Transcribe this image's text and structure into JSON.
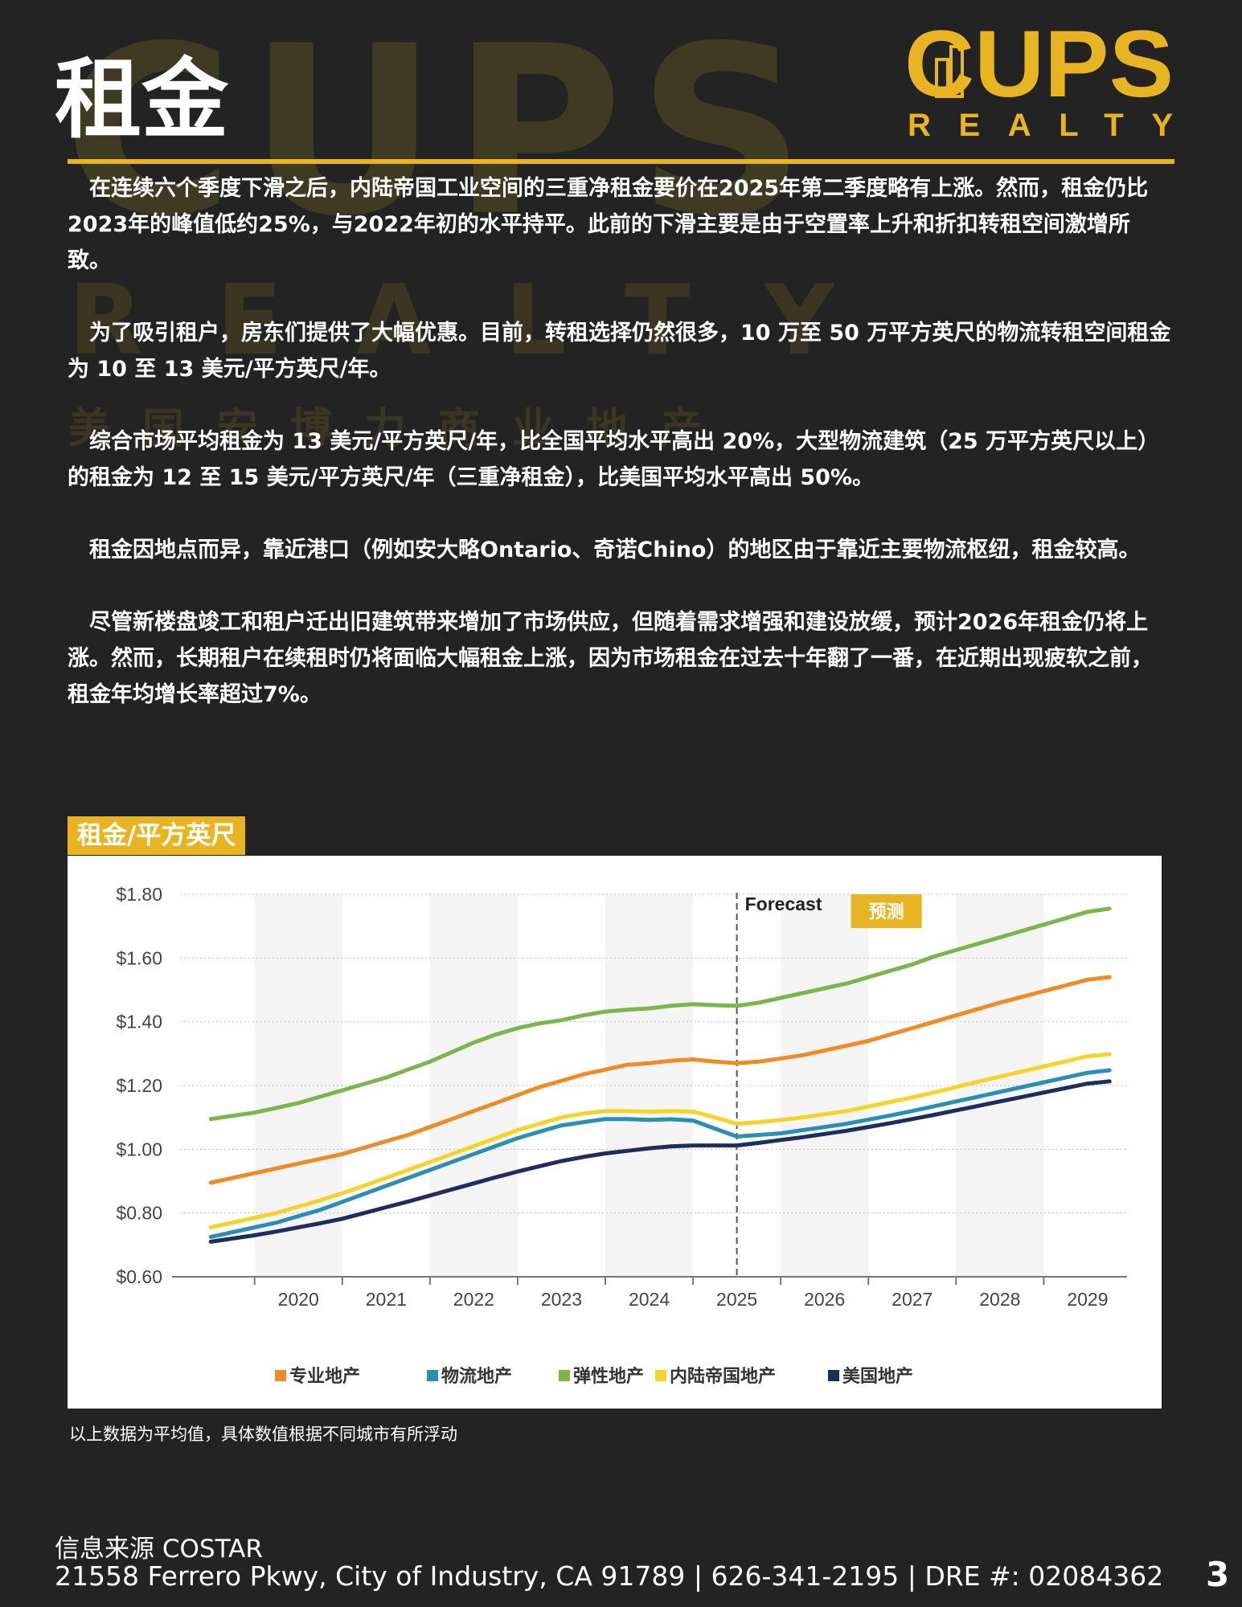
{
  "title": "租金",
  "watermark": {
    "big": "CUPS",
    "mid": "REALTY",
    "small": "美国安博力商业地产"
  },
  "logo": {
    "top": "CUPS",
    "bottom": "REALTY",
    "primary_color": "#e8b422",
    "icon": "building-icon"
  },
  "paragraphs": [
    "在连续六个季度下滑之后，内陆帝国工业空间的三重净租金要价在2025年第二季度略有上涨。然而，租金仍比2023年的峰值低约25%，与2022年初的水平持平。此前的下滑主要是由于空置率上升和折扣转租空间激增所致。",
    "为了吸引租户，房东们提供了大幅优惠。目前，转租选择仍然很多，10 万至 50 万平方英尺的物流转租空间租金为 10 至 13 美元/平方英尺/年。",
    "综合市场平均租金为 13 美元/平方英尺/年，比全国平均水平高出 20%，大型物流建筑（25 万平方英尺以上）的租金为 12 至 15 美元/平方英尺/年（三重净租金），比美国平均水平高出 50%。",
    "租金因地点而异，靠近港口（例如安大略Ontario、奇诺Chino）的地区由于靠近主要物流枢纽，租金较高。",
    "尽管新楼盘竣工和租户迁出旧建筑带来增加了市场供应，但随着需求增强和建设放缓，预计2026年租金仍将上涨。然而，长期租户在续租时仍将面临大幅租金上涨，因为市场租金在过去十年翻了一番，在近期出现疲软之前，租金年均增长率超过7%。"
  ],
  "chart_tag": "租金/平方英尺",
  "chart_data": {
    "type": "line",
    "x": [
      2019.0,
      2019.25,
      2019.5,
      2019.75,
      2020.0,
      2020.25,
      2020.5,
      2020.75,
      2021.0,
      2021.25,
      2021.5,
      2021.75,
      2022.0,
      2022.25,
      2022.5,
      2022.75,
      2023.0,
      2023.25,
      2023.5,
      2023.75,
      2024.0,
      2024.25,
      2024.5,
      2024.75,
      2025.0,
      2025.25,
      2025.5,
      2025.75,
      2026.0,
      2026.25,
      2026.5,
      2026.75,
      2027.0,
      2027.25,
      2027.5,
      2027.75,
      2028.0,
      2028.25,
      2028.5,
      2028.75,
      2029.0,
      2029.25
    ],
    "xlim": [
      2018.65,
      2029.45
    ],
    "xticks": [
      2020,
      2021,
      2022,
      2023,
      2024,
      2025,
      2026,
      2027,
      2028,
      2029
    ],
    "ylim": [
      0.6,
      1.8
    ],
    "yticks": [
      0.6,
      0.8,
      1.0,
      1.2,
      1.4,
      1.6,
      1.8
    ],
    "ytick_labels": [
      "$0.60",
      "$0.80",
      "$1.00",
      "$1.20",
      "$1.40",
      "$1.60",
      "$1.80"
    ],
    "series": [
      {
        "name": "专业地产",
        "color": "#ef8a25",
        "values": [
          0.895,
          0.91,
          0.925,
          0.94,
          0.955,
          0.97,
          0.985,
          1.005,
          1.025,
          1.045,
          1.07,
          1.095,
          1.12,
          1.145,
          1.17,
          1.195,
          1.215,
          1.235,
          1.25,
          1.265,
          1.27,
          1.278,
          1.282,
          1.275,
          1.27,
          1.275,
          1.285,
          1.295,
          1.31,
          1.325,
          1.34,
          1.36,
          1.38,
          1.4,
          1.42,
          1.44,
          1.46,
          1.478,
          1.496,
          1.514,
          1.532,
          1.54
        ]
      },
      {
        "name": "物流地产",
        "color": "#2b8fb5",
        "values": [
          0.725,
          0.74,
          0.755,
          0.77,
          0.79,
          0.81,
          0.835,
          0.86,
          0.885,
          0.91,
          0.935,
          0.96,
          0.985,
          1.01,
          1.035,
          1.055,
          1.075,
          1.085,
          1.095,
          1.095,
          1.092,
          1.094,
          1.09,
          1.065,
          1.04,
          1.045,
          1.05,
          1.06,
          1.07,
          1.08,
          1.093,
          1.106,
          1.12,
          1.135,
          1.15,
          1.165,
          1.18,
          1.195,
          1.21,
          1.225,
          1.24,
          1.248
        ]
      },
      {
        "name": "弹性地产",
        "color": "#7ab648",
        "values": [
          1.095,
          1.105,
          1.115,
          1.13,
          1.145,
          1.165,
          1.185,
          1.205,
          1.225,
          1.25,
          1.275,
          1.305,
          1.335,
          1.36,
          1.38,
          1.395,
          1.405,
          1.42,
          1.432,
          1.438,
          1.442,
          1.45,
          1.455,
          1.452,
          1.45,
          1.46,
          1.475,
          1.49,
          1.505,
          1.52,
          1.54,
          1.56,
          1.58,
          1.605,
          1.625,
          1.645,
          1.665,
          1.685,
          1.705,
          1.725,
          1.745,
          1.755
        ]
      },
      {
        "name": "内陆帝国地产",
        "color": "#f5d327",
        "values": [
          0.755,
          0.77,
          0.785,
          0.8,
          0.82,
          0.84,
          0.862,
          0.886,
          0.91,
          0.935,
          0.96,
          0.985,
          1.01,
          1.035,
          1.06,
          1.08,
          1.1,
          1.112,
          1.12,
          1.12,
          1.118,
          1.12,
          1.118,
          1.1,
          1.08,
          1.085,
          1.092,
          1.1,
          1.11,
          1.12,
          1.134,
          1.148,
          1.163,
          1.178,
          1.195,
          1.212,
          1.228,
          1.244,
          1.26,
          1.276,
          1.292,
          1.298
        ]
      },
      {
        "name": "美国地产",
        "color": "#1d2d5e",
        "values": [
          0.71,
          0.72,
          0.73,
          0.742,
          0.755,
          0.768,
          0.782,
          0.8,
          0.818,
          0.836,
          0.855,
          0.874,
          0.893,
          0.912,
          0.93,
          0.947,
          0.963,
          0.976,
          0.987,
          0.995,
          1.003,
          1.009,
          1.012,
          1.012,
          1.012,
          1.02,
          1.029,
          1.038,
          1.048,
          1.058,
          1.07,
          1.082,
          1.095,
          1.108,
          1.122,
          1.136,
          1.15,
          1.164,
          1.178,
          1.192,
          1.206,
          1.213
        ]
      }
    ],
    "forecast": {
      "x": 2025,
      "label": "Forecast",
      "badge": "预测",
      "badge_color": "#e8b422"
    },
    "shaded_years": [
      2020,
      2022,
      2024,
      2026,
      2028
    ],
    "grid": true,
    "legend_position": "bottom"
  },
  "footnote": "以上数据为平均值，具体数值根据不同城市有所浮动",
  "source": "信息来源 COSTAR",
  "address": "21558 Ferrero Pkwy, City of Industry, CA 91789 | 626-341-2195 | DRE #: 02084362",
  "page_number": "3"
}
